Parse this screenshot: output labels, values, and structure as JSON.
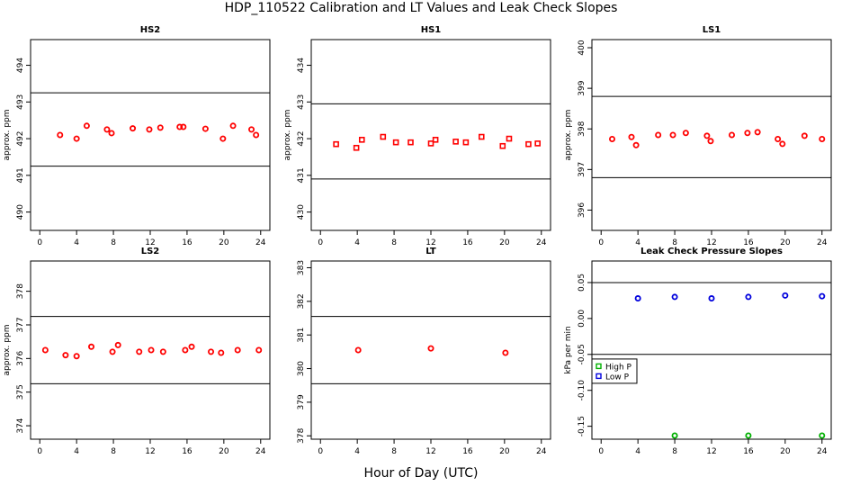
{
  "figure": {
    "title": "HDP_110522  Calibration and LT Values and Leak Check Slopes",
    "xlabel": "Hour of Day (UTC)"
  },
  "chart_data": [
    {
      "type": "scatter",
      "title": "HS2",
      "ylabel": "approx. ppm",
      "xlim": [
        -1,
        25
      ],
      "ylim": [
        489.5,
        494.7
      ],
      "xticks": [
        0,
        4,
        8,
        12,
        16,
        20,
        24
      ],
      "yticks": [
        490,
        491,
        492,
        493,
        494
      ],
      "hlines": [
        493.25,
        491.25
      ],
      "color": "#ff0000",
      "marker": "circle",
      "x": [
        2.2,
        4.0,
        5.1,
        7.3,
        7.8,
        10.1,
        11.9,
        13.1,
        15.2,
        15.6,
        18.0,
        19.9,
        21.0,
        23.0,
        23.5
      ],
      "y": [
        492.1,
        492.0,
        492.35,
        492.25,
        492.15,
        492.28,
        492.25,
        492.3,
        492.32,
        492.32,
        492.27,
        492.0,
        492.35,
        492.25,
        492.1
      ]
    },
    {
      "type": "scatter",
      "title": "HS1",
      "ylabel": "approx. ppm",
      "xlim": [
        -1,
        25
      ],
      "ylim": [
        429.5,
        434.7
      ],
      "xticks": [
        0,
        4,
        8,
        12,
        16,
        20,
        24
      ],
      "yticks": [
        430,
        431,
        432,
        433,
        434
      ],
      "hlines": [
        432.95,
        430.9
      ],
      "color": "#ff0000",
      "marker": "square",
      "x": [
        1.7,
        3.9,
        4.5,
        6.8,
        8.2,
        9.8,
        12.0,
        12.5,
        14.7,
        15.8,
        17.5,
        19.8,
        20.5,
        22.6,
        23.6
      ],
      "y": [
        431.85,
        431.75,
        431.97,
        432.05,
        431.9,
        431.9,
        431.87,
        431.97,
        431.92,
        431.9,
        432.05,
        431.8,
        432.0,
        431.85,
        431.87
      ]
    },
    {
      "type": "scatter",
      "title": "LS1",
      "ylabel": "approx. ppm",
      "xlim": [
        -1,
        25
      ],
      "ylim": [
        395.5,
        400.2
      ],
      "xticks": [
        0,
        4,
        8,
        12,
        16,
        20,
        24
      ],
      "yticks": [
        396,
        397,
        398,
        399,
        400
      ],
      "hlines": [
        398.8,
        396.8
      ],
      "color": "#ff0000",
      "marker": "circle",
      "x": [
        1.2,
        3.3,
        3.8,
        6.2,
        7.8,
        9.2,
        11.5,
        11.9,
        14.2,
        15.9,
        17.0,
        19.2,
        19.7,
        22.1,
        24.0
      ],
      "y": [
        397.75,
        397.8,
        397.6,
        397.85,
        397.85,
        397.9,
        397.83,
        397.7,
        397.85,
        397.9,
        397.92,
        397.75,
        397.63,
        397.83,
        397.75
      ]
    },
    {
      "type": "scatter",
      "title": "LS2",
      "ylabel": "approx. ppm",
      "xlim": [
        -1,
        25
      ],
      "ylim": [
        373.6,
        378.9
      ],
      "xticks": [
        0,
        4,
        8,
        12,
        16,
        20,
        24
      ],
      "yticks": [
        374,
        375,
        376,
        377,
        378
      ],
      "hlines": [
        377.25,
        375.25
      ],
      "color": "#ff0000",
      "marker": "circle",
      "x": [
        0.6,
        2.8,
        4.0,
        5.6,
        7.9,
        8.5,
        10.8,
        12.1,
        13.4,
        15.8,
        16.5,
        18.6,
        19.7,
        21.5,
        23.8
      ],
      "y": [
        376.25,
        376.1,
        376.07,
        376.35,
        376.2,
        376.4,
        376.2,
        376.25,
        376.2,
        376.25,
        376.35,
        376.2,
        376.17,
        376.25,
        376.25
      ]
    },
    {
      "type": "scatter",
      "title": "LT",
      "ylabel": "",
      "xlim": [
        -1,
        25
      ],
      "ylim": [
        377.9,
        383.2
      ],
      "xticks": [
        0,
        4,
        8,
        12,
        16,
        20,
        24
      ],
      "yticks": [
        378,
        379,
        380,
        381,
        382,
        383
      ],
      "hlines": [
        381.55,
        379.55
      ],
      "color": "#ff0000",
      "marker": "circle",
      "x": [
        4.1,
        12.0,
        20.1
      ],
      "y": [
        380.55,
        380.6,
        380.47
      ]
    },
    {
      "type": "scatter",
      "title": "Leak Check Pressure Slopes",
      "ylabel": "kPa per min",
      "xlim": [
        -1,
        25
      ],
      "ylim": [
        -0.168,
        0.08
      ],
      "xticks": [
        0,
        4,
        8,
        12,
        16,
        20,
        24
      ],
      "yticks": [
        -0.15,
        -0.1,
        -0.05,
        0.0,
        0.05
      ],
      "ytick_labels": [
        "-0.15",
        "-0.10",
        "-0.05",
        "0.00",
        "0.05"
      ],
      "hlines": [
        0.05,
        -0.05
      ],
      "legend_position": "left",
      "series": [
        {
          "name": "High P",
          "color": "#00b000",
          "marker": "circle",
          "x": [
            8,
            16,
            24
          ],
          "y": [
            -0.163,
            -0.163,
            -0.163
          ]
        },
        {
          "name": "Low P",
          "color": "#0000dd",
          "marker": "circle",
          "x": [
            4,
            8,
            12,
            16,
            20,
            24
          ],
          "y": [
            0.028,
            0.03,
            0.028,
            0.03,
            0.032,
            0.031
          ]
        }
      ]
    }
  ]
}
